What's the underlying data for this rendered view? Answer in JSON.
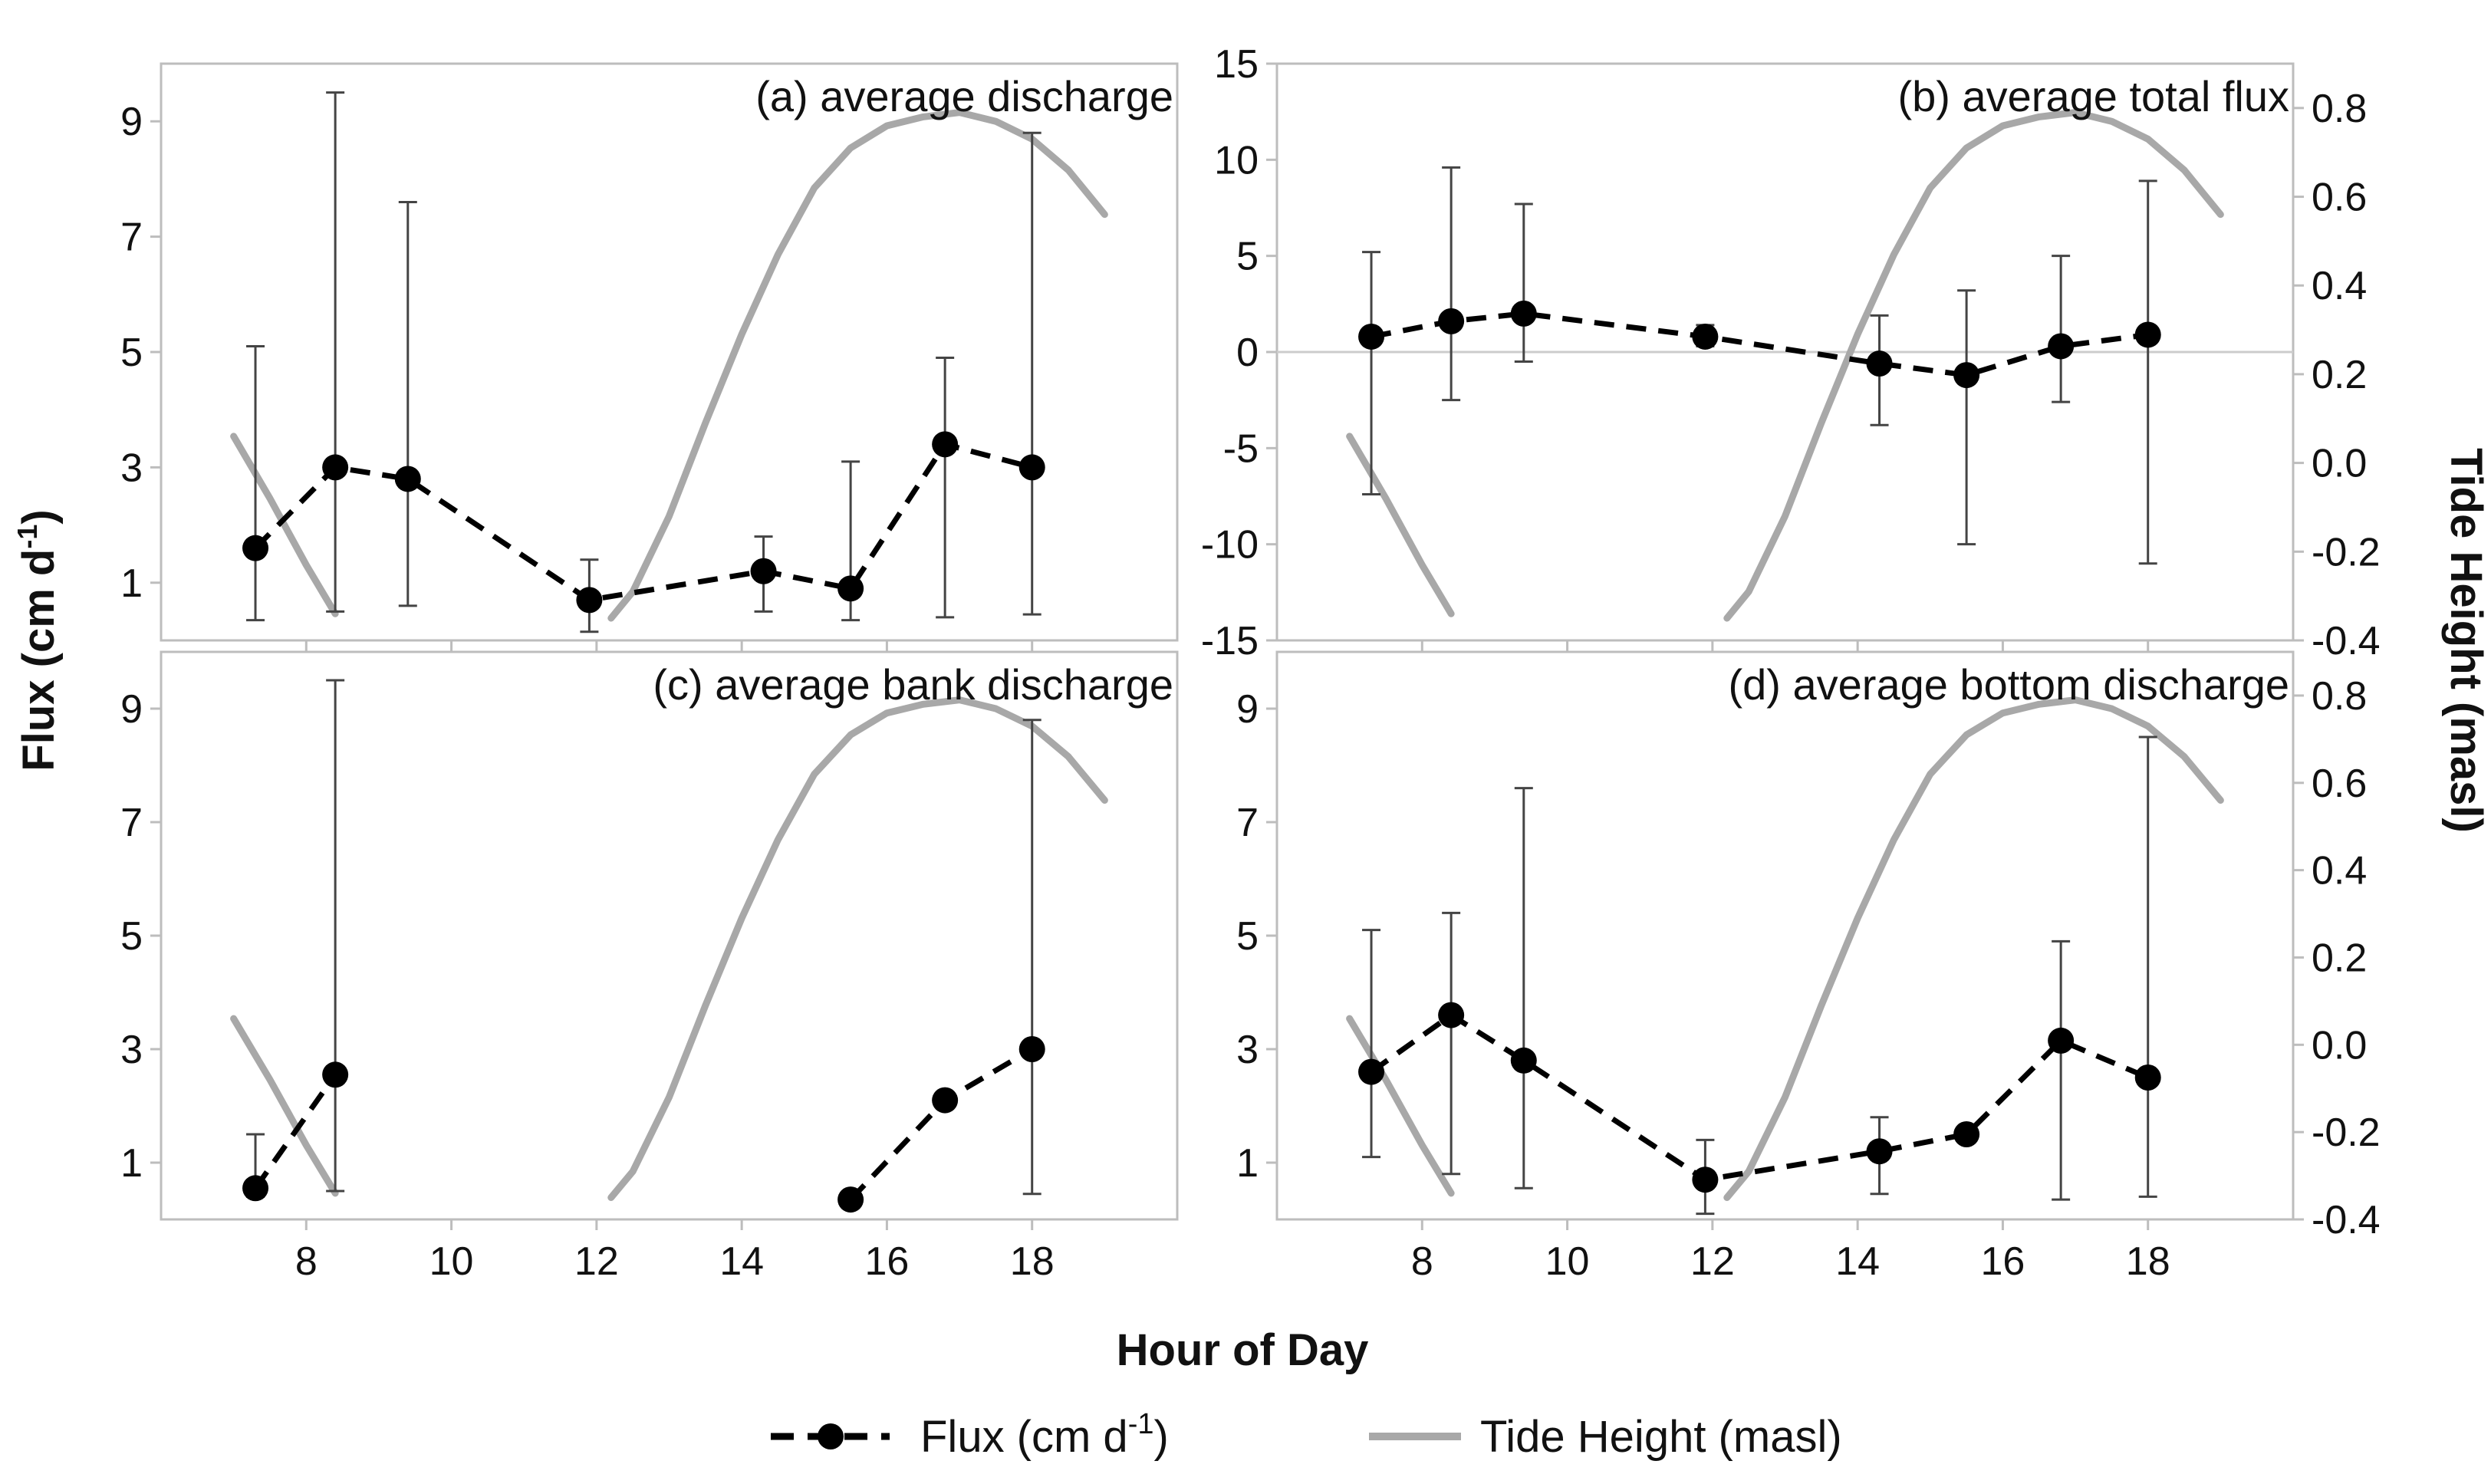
{
  "figure": {
    "shared_xlabel": "Hour of Day",
    "shared_ylabel_left_base": "Flux (cm d",
    "shared_ylabel_left_sup": "-1",
    "shared_ylabel_left_end": ")",
    "shared_ylabel_right": "Tide Height (masl)",
    "legend": {
      "flux_base": "Flux (cm d",
      "flux_sup": "-1",
      "flux_end": ")",
      "tide": "Tide Height (masl)"
    },
    "colors": {
      "flux": "#000000",
      "tide": "#a8a8a8",
      "frame": "#bdbdbd",
      "zero_line": "#cccccc"
    }
  },
  "chart_data": [
    {
      "id": "a",
      "type": "line",
      "title": "(a) average discharge",
      "xlim": [
        6.0,
        20.0
      ],
      "ylim": [
        0,
        10
      ],
      "xticks": [
        8,
        10,
        12,
        14,
        16,
        18
      ],
      "yticks": [
        1,
        3,
        5,
        7,
        9
      ],
      "xtick_labels": [
        "",
        "",
        "",
        "",
        "",
        ""
      ],
      "ytick_labels": [
        "1",
        "3",
        "5",
        "7",
        "9"
      ],
      "right_ylim": [
        -0.4,
        0.9
      ],
      "right_yticks": [],
      "right_ytick_labels": [],
      "flux": {
        "x": [
          7.3,
          8.4,
          9.4,
          11.9,
          14.3,
          15.5,
          16.8,
          18.0
        ],
        "y": [
          1.6,
          3.0,
          2.8,
          0.7,
          1.2,
          0.9,
          3.4,
          3.0
        ],
        "err_low": [
          0.35,
          0.5,
          0.6,
          0.15,
          0.5,
          0.35,
          0.4,
          0.45
        ],
        "err_high": [
          5.1,
          9.5,
          7.6,
          1.4,
          1.8,
          3.1,
          4.9,
          8.8
        ],
        "segments": [
          [
            0,
            7
          ]
        ]
      },
      "tide": {
        "segments": [
          {
            "x": [
              7.0,
              7.5,
              8.0,
              8.4
            ],
            "y": [
              0.06,
              -0.08,
              -0.23,
              -0.34
            ]
          },
          {
            "x": [
              12.2,
              12.5,
              13.0,
              13.5,
              14.0,
              14.5,
              15.0,
              15.5,
              16.0,
              16.5,
              17.0,
              17.5,
              18.0,
              18.5,
              19.0
            ],
            "y": [
              -0.35,
              -0.29,
              -0.12,
              0.09,
              0.29,
              0.47,
              0.62,
              0.71,
              0.76,
              0.78,
              0.79,
              0.77,
              0.73,
              0.66,
              0.56
            ]
          }
        ]
      }
    },
    {
      "id": "b",
      "type": "line",
      "title": "(b) average total flux",
      "xlim": [
        6.0,
        20.0
      ],
      "ylim": [
        -15,
        15
      ],
      "xticks": [
        8,
        10,
        12,
        14,
        16,
        18
      ],
      "yticks": [
        -15,
        -10,
        -5,
        0,
        5,
        10,
        15
      ],
      "xtick_labels": [
        "",
        "",
        "",
        "",
        "",
        ""
      ],
      "ytick_labels": [
        "-15",
        "-10",
        "-5",
        "0",
        "5",
        "10",
        "15"
      ],
      "zero_line": true,
      "right_ylim": [
        -0.4,
        0.9
      ],
      "right_yticks": [
        -0.4,
        -0.2,
        0.0,
        0.2,
        0.4,
        0.6,
        0.8
      ],
      "right_ytick_labels": [
        "-0.4",
        "-0.2",
        "0.0",
        "0.2",
        "0.4",
        "0.6",
        "0.8"
      ],
      "flux": {
        "x": [
          7.3,
          8.4,
          9.4,
          11.9,
          14.3,
          15.5,
          16.8,
          18.0
        ],
        "y": [
          0.8,
          1.6,
          2.0,
          0.8,
          -0.6,
          -1.2,
          0.3,
          0.9
        ],
        "err_low": [
          -7.4,
          -2.5,
          -0.5,
          0.3,
          -3.8,
          -10.0,
          -2.6,
          -11.0
        ],
        "err_high": [
          5.2,
          9.6,
          7.7,
          1.4,
          1.9,
          3.2,
          5.0,
          8.9
        ],
        "segments": [
          [
            0,
            7
          ]
        ]
      },
      "tide": {
        "segments": [
          {
            "x": [
              7.0,
              7.5,
              8.0,
              8.4
            ],
            "y": [
              0.06,
              -0.08,
              -0.23,
              -0.34
            ]
          },
          {
            "x": [
              12.2,
              12.5,
              13.0,
              13.5,
              14.0,
              14.5,
              15.0,
              15.5,
              16.0,
              16.5,
              17.0,
              17.5,
              18.0,
              18.5,
              19.0
            ],
            "y": [
              -0.35,
              -0.29,
              -0.12,
              0.09,
              0.29,
              0.47,
              0.62,
              0.71,
              0.76,
              0.78,
              0.79,
              0.77,
              0.73,
              0.66,
              0.56
            ]
          }
        ]
      }
    },
    {
      "id": "c",
      "type": "line",
      "title": "(c) average bank discharge",
      "xlim": [
        6.0,
        20.0
      ],
      "ylim": [
        0,
        10
      ],
      "xticks": [
        8,
        10,
        12,
        14,
        16,
        18
      ],
      "yticks": [
        1,
        3,
        5,
        7,
        9
      ],
      "xtick_labels": [
        "8",
        "10",
        "12",
        "14",
        "16",
        "18"
      ],
      "ytick_labels": [
        "1",
        "3",
        "5",
        "7",
        "9"
      ],
      "right_ylim": [
        -0.4,
        0.9
      ],
      "right_yticks": [],
      "right_ytick_labels": [],
      "flux": {
        "x": [
          7.3,
          8.4,
          15.5,
          16.8,
          18.0
        ],
        "y": [
          0.55,
          2.55,
          0.35,
          2.1,
          3.0
        ],
        "err_low": [
          0.4,
          0.5,
          0.35,
          2.1,
          0.45
        ],
        "err_high": [
          1.5,
          9.5,
          0.35,
          2.1,
          8.8
        ],
        "segments": [
          [
            0,
            1
          ],
          [
            2,
            4
          ]
        ]
      },
      "tide": {
        "segments": [
          {
            "x": [
              7.0,
              7.5,
              8.0,
              8.4
            ],
            "y": [
              0.06,
              -0.08,
              -0.23,
              -0.34
            ]
          },
          {
            "x": [
              12.2,
              12.5,
              13.0,
              13.5,
              14.0,
              14.5,
              15.0,
              15.5,
              16.0,
              16.5,
              17.0,
              17.5,
              18.0,
              18.5,
              19.0
            ],
            "y": [
              -0.35,
              -0.29,
              -0.12,
              0.09,
              0.29,
              0.47,
              0.62,
              0.71,
              0.76,
              0.78,
              0.79,
              0.77,
              0.73,
              0.66,
              0.56
            ]
          }
        ]
      }
    },
    {
      "id": "d",
      "type": "line",
      "title": "(d) average bottom discharge",
      "xlim": [
        6.0,
        20.0
      ],
      "ylim": [
        0,
        10
      ],
      "xticks": [
        8,
        10,
        12,
        14,
        16,
        18
      ],
      "yticks": [
        1,
        3,
        5,
        7,
        9
      ],
      "xtick_labels": [
        "8",
        "10",
        "12",
        "14",
        "16",
        "18"
      ],
      "ytick_labels": [
        "1",
        "3",
        "5",
        "7",
        "9"
      ],
      "right_ylim": [
        -0.4,
        0.9
      ],
      "right_yticks": [
        -0.4,
        -0.2,
        0.0,
        0.2,
        0.4,
        0.6,
        0.8
      ],
      "right_ytick_labels": [
        "-0.4",
        "-0.2",
        "0.0",
        "0.2",
        "0.4",
        "0.6",
        "0.8"
      ],
      "flux": {
        "x": [
          7.3,
          8.4,
          9.4,
          11.9,
          14.3,
          15.5,
          16.8,
          18.0
        ],
        "y": [
          2.6,
          3.6,
          2.8,
          0.7,
          1.2,
          1.5,
          3.15,
          2.5
        ],
        "err_low": [
          1.1,
          0.8,
          0.55,
          0.1,
          0.45,
          1.5,
          0.35,
          0.4
        ],
        "err_high": [
          5.1,
          5.4,
          7.6,
          1.4,
          1.8,
          1.5,
          4.9,
          8.5
        ],
        "segments": [
          [
            0,
            7
          ]
        ]
      },
      "tide": {
        "segments": [
          {
            "x": [
              7.0,
              7.5,
              8.0,
              8.4
            ],
            "y": [
              0.06,
              -0.08,
              -0.23,
              -0.34
            ]
          },
          {
            "x": [
              12.2,
              12.5,
              13.0,
              13.5,
              14.0,
              14.5,
              15.0,
              15.5,
              16.0,
              16.5,
              17.0,
              17.5,
              18.0,
              18.5,
              19.0
            ],
            "y": [
              -0.35,
              -0.29,
              -0.12,
              0.09,
              0.29,
              0.47,
              0.62,
              0.71,
              0.76,
              0.78,
              0.79,
              0.77,
              0.73,
              0.66,
              0.56
            ]
          }
        ]
      }
    }
  ]
}
